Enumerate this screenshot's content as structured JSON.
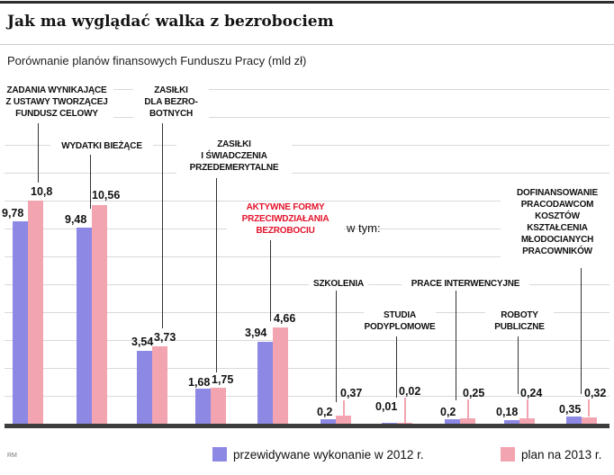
{
  "header": {
    "title": "Jak ma wyglądać walka z bezrobociem",
    "subtitle": "Porównanie planów finansowych Funduszu Pracy (mld zł)"
  },
  "mid_label": "w tym:",
  "source": "RM",
  "legend": {
    "item2012": "przewidywane wykonanie w 2012 r.",
    "item2013": "plan na 2013 r."
  },
  "colors": {
    "bar2012": "#8d88e4",
    "bar2013": "#f2a4b1",
    "highlight_text": "#e3132b"
  },
  "chart_data": {
    "type": "bar",
    "title": "Jak ma wyglądać walka z bezrobociem",
    "subtitle": "Porównanie planów finansowych Funduszu Pracy (mld zł)",
    "unit": "mld zł",
    "grid": true,
    "legend_position": "bottom",
    "ylim": [
      0,
      12
    ],
    "series_names": [
      "przewidywane wykonanie w 2012 r.",
      "plan na 2013 r."
    ],
    "categories": [
      {
        "label": "ZADANIA WYNIKAJĄCE\nZ USTAWY TWORZĄCEJ\nFUNDUSZ CELOWY",
        "v2012": 9.78,
        "v2013": 10.8,
        "d2012": "9,78",
        "d2013": "10,8"
      },
      {
        "label": "WYDATKI BIEŻĄCE",
        "v2012": 9.48,
        "v2013": 10.56,
        "d2012": "9,48",
        "d2013": "10,56"
      },
      {
        "label": "ZASIŁKI\nDLA BEZRO-\nBOTNYCH",
        "v2012": 3.54,
        "v2013": 3.73,
        "d2012": "3,54",
        "d2013": "3,73"
      },
      {
        "label": "ZASIŁKI\nI ŚWIADCZENIA\nPRZEDEMERYTALNE",
        "v2012": 1.68,
        "v2013": 1.75,
        "d2012": "1,68",
        "d2013": "1,75"
      },
      {
        "label": "AKTYWNE FORMY\nPRZECIWDZIAŁANIA\nBEZROBOCIU",
        "v2012": 3.94,
        "v2013": 4.66,
        "d2012": "3,94",
        "d2013": "4,66",
        "highlight": true
      },
      {
        "label": "SZKOLENIA",
        "v2012": 0.2,
        "v2013": 0.37,
        "d2012": "0,2",
        "d2013": "0,37"
      },
      {
        "label": "STUDIA\nPODYPLOMOWE",
        "v2012": 0.01,
        "v2013": 0.02,
        "d2012": "0,01",
        "d2013": "0,02"
      },
      {
        "label": "PRACE INTERWENCYJNE",
        "v2012": 0.2,
        "v2013": 0.25,
        "d2012": "0,2",
        "d2013": "0,25"
      },
      {
        "label": "ROBOTY\nPUBLICZNE",
        "v2012": 0.18,
        "v2013": 0.24,
        "d2012": "0,18",
        "d2013": "0,24"
      },
      {
        "label": "DOFINANSOWANIE\nPRACODAWCOM\nKOSZTÓW\nKSZTAŁCENIA\nMŁODOCIANYCH\nPRACOWNIKÓW",
        "v2012": 0.35,
        "v2013": 0.32,
        "d2012": "0,35",
        "d2013": "0,32"
      }
    ]
  }
}
